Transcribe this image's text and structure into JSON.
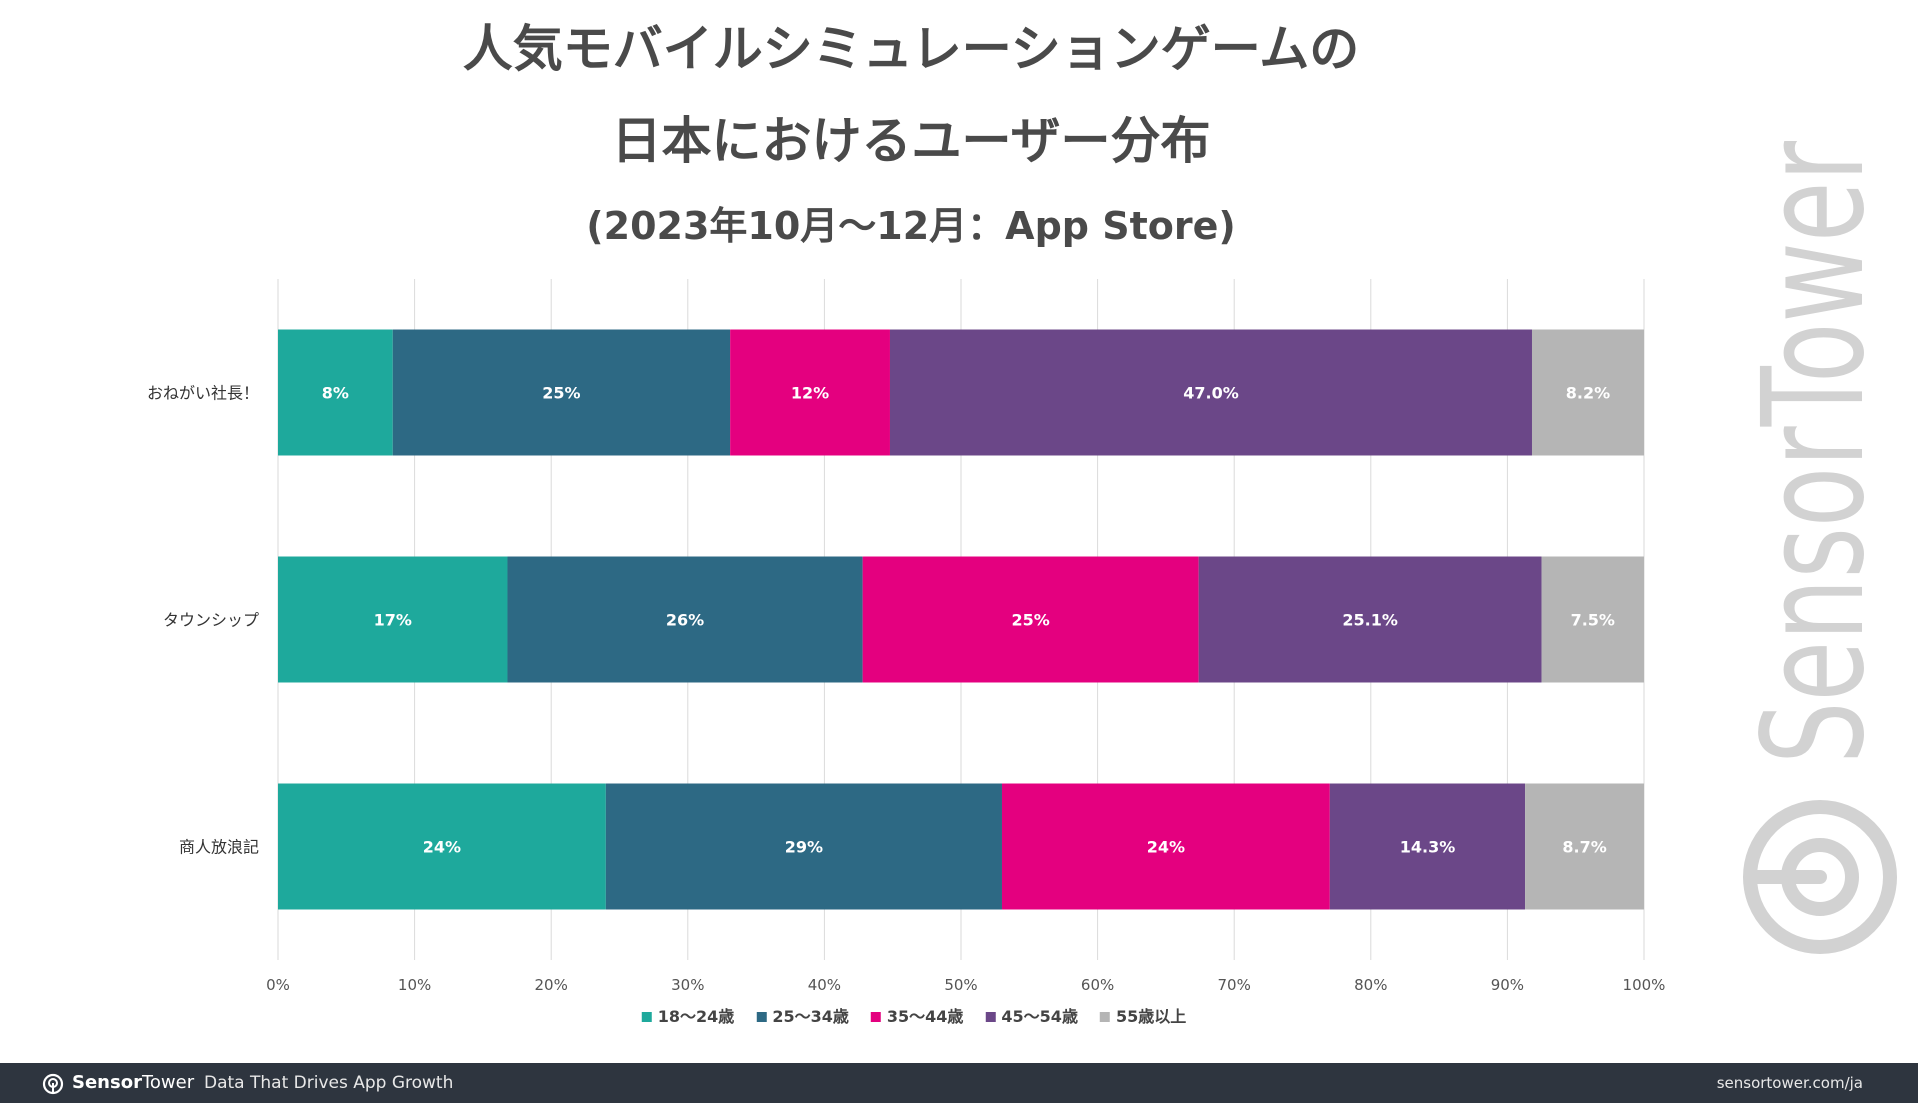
{
  "title": {
    "line1": "人気モバイルシミュレーションゲームの",
    "line2": "日本におけるユーザー分布",
    "subtitle": "(2023年10月～12月：App Store)"
  },
  "chart_data": {
    "type": "bar",
    "orientation": "horizontal",
    "stacked": true,
    "categories": [
      "おねがい社長！",
      "タウンシップ",
      "商人放浪記"
    ],
    "series": [
      {
        "name": "18～24歳",
        "color": "#1ea99c",
        "values": [
          8.4,
          16.8,
          24.0
        ],
        "labels": [
          "8%",
          "17%",
          "24%"
        ]
      },
      {
        "name": "25～34歳",
        "color": "#2d6984",
        "values": [
          24.7,
          26.0,
          29.0
        ],
        "labels": [
          "25%",
          "26%",
          "29%"
        ]
      },
      {
        "name": "35～44歳",
        "color": "#e4007f",
        "values": [
          11.7,
          24.6,
          24.0
        ],
        "labels": [
          "12%",
          "25%",
          "24%"
        ]
      },
      {
        "name": "45～54歳",
        "color": "#6b4788",
        "values": [
          47.0,
          25.1,
          14.3
        ],
        "labels": [
          "47.0%",
          "25.1%",
          "14.3%"
        ]
      },
      {
        "name": "55歳以上",
        "color": "#b5b5b5",
        "values": [
          8.2,
          7.5,
          8.7
        ],
        "labels": [
          "8.2%",
          "7.5%",
          "8.7%"
        ]
      }
    ],
    "xlim": [
      0,
      100
    ],
    "x_ticks": [
      0,
      10,
      20,
      30,
      40,
      50,
      60,
      70,
      80,
      90,
      100
    ],
    "x_tick_labels": [
      "0%",
      "10%",
      "20%",
      "30%",
      "40%",
      "50%",
      "60%",
      "70%",
      "80%",
      "90%",
      "100%"
    ],
    "grid": true,
    "legend": "bottom"
  },
  "watermark": "SensorTower",
  "footer": {
    "brand_part1": "Sensor",
    "brand_part2": "Tower",
    "tagline": "Data That Drives App Growth",
    "url": "sensortower.com/ja",
    "background": "#2e353f"
  }
}
